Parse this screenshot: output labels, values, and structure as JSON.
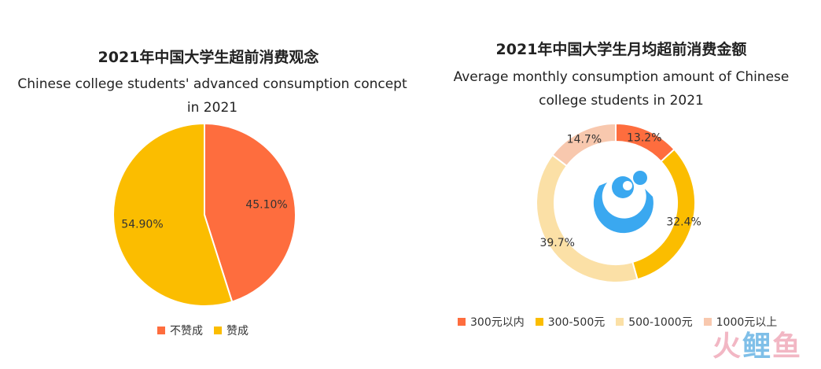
{
  "colors": {
    "red_orange": "#fe6d3e",
    "yellow": "#fbbd00",
    "light_yellow": "#fbe0a6",
    "peach": "#f8c8ae",
    "logo_blue": "#3aa8f0"
  },
  "watermark": {
    "part1": "火",
    "part2": "鲤",
    "part3": "鱼"
  },
  "chart_data": [
    {
      "type": "pie",
      "title": "2021年中国大学生超前消费观念",
      "subtitle": "Chinese college students' advanced consumption concept in 2021",
      "subtitle_line1": "Chinese college students' advanced consumption concept",
      "subtitle_line2": "in 2021",
      "categories": [
        "不赞成",
        "赞成"
      ],
      "values": [
        45.1,
        54.9
      ],
      "labels": [
        "45.10%",
        "54.90%"
      ],
      "colors": [
        "#fe6d3e",
        "#fbbd00"
      ],
      "legend_position": "bottom"
    },
    {
      "type": "pie",
      "donut": true,
      "title": "2021年中国大学生月均超前消费金额",
      "subtitle": "Average monthly consumption amount of Chinese college students in 2021",
      "subtitle_line1": "Average monthly consumption amount of Chinese",
      "subtitle_line2": "college students in 2021",
      "categories": [
        "300元以内",
        "300-500元",
        "500-1000元",
        "1000元以上"
      ],
      "values": [
        13.2,
        32.4,
        39.7,
        14.7
      ],
      "labels": [
        "13.2%",
        "32.4%",
        "39.7%",
        "14.7%"
      ],
      "colors": [
        "#fe6d3e",
        "#fbbd00",
        "#fbe0a6",
        "#f8c8ae"
      ],
      "legend_position": "bottom"
    }
  ]
}
